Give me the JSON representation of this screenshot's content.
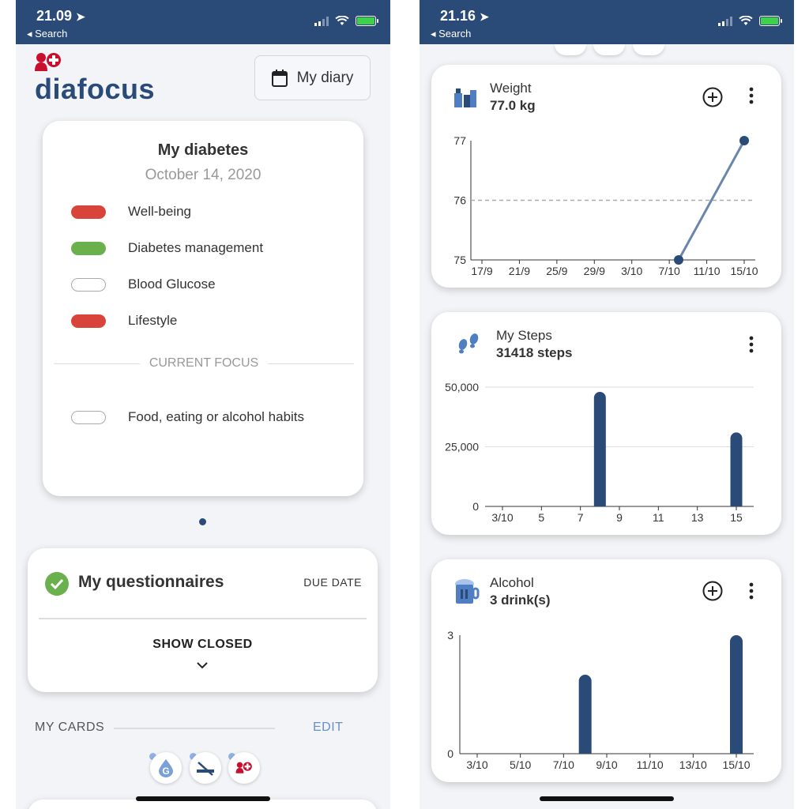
{
  "left": {
    "status": {
      "time": "21.09",
      "back": "Search"
    },
    "brand": "diafocus",
    "diary_button": "My diary",
    "diabetes_card": {
      "title": "My diabetes",
      "date": "October 14, 2020",
      "items": [
        {
          "label": "Well-being",
          "color": "red"
        },
        {
          "label": "Diabetes management",
          "color": "green"
        },
        {
          "label": "Blood Glucose",
          "color": "empty"
        },
        {
          "label": "Lifestyle",
          "color": "red"
        }
      ],
      "focus_heading": "CURRENT FOCUS",
      "focus_item": {
        "label": "Food, eating or alcohol habits",
        "color": "empty"
      }
    },
    "questionnaires": {
      "title": "My questionnaires",
      "due_label": "DUE DATE",
      "show_closed": "SHOW CLOSED"
    },
    "my_cards": {
      "label": "MY CARDS",
      "edit": "EDIT"
    },
    "mini_icons": [
      "glucose-icon",
      "no-smoking-icon",
      "diafocus-icon"
    ]
  },
  "right": {
    "status": {
      "time": "21.16",
      "back": "Search"
    },
    "weight_card": {
      "name": "Weight",
      "value": "77.0 kg"
    },
    "steps_card": {
      "name": "My Steps",
      "value": "31418 steps"
    },
    "alcohol_card": {
      "name": "Alcohol",
      "value": "3 drink(s)"
    }
  },
  "colors": {
    "brand": "#2a4a77",
    "red": "#d9443a",
    "green": "#6ab04c",
    "link": "#6a8fc7"
  },
  "chart_data": [
    {
      "type": "line",
      "title": "Weight",
      "x_ticks": [
        "17/9",
        "21/9",
        "25/9",
        "29/9",
        "3/10",
        "7/10",
        "11/10",
        "15/10"
      ],
      "y_ticks": [
        "75",
        "76",
        "77"
      ],
      "ylim": [
        75,
        77
      ],
      "reference_line": 76,
      "points": [
        {
          "x": "8/10",
          "y": 75
        },
        {
          "x": "15/10",
          "y": 77
        }
      ],
      "point_values": [
        75,
        77
      ]
    },
    {
      "type": "bar",
      "title": "My Steps",
      "x_ticks": [
        "3/10",
        "5",
        "7",
        "9",
        "11",
        "13",
        "15"
      ],
      "y_ticks": [
        "0",
        "25,000",
        "50,000"
      ],
      "ylim": [
        0,
        50000
      ],
      "bars": [
        {
          "x": "8/10",
          "y": 48000
        },
        {
          "x": "15/10",
          "y": 31000
        }
      ],
      "bar_values": [
        48000,
        31000
      ]
    },
    {
      "type": "bar",
      "title": "Alcohol",
      "x_ticks": [
        "3/10",
        "5/10",
        "7/10",
        "9/10",
        "11/10",
        "13/10",
        "15/10"
      ],
      "y_ticks": [
        "0",
        "3"
      ],
      "ylim": [
        0,
        3
      ],
      "bars": [
        {
          "x": "8/10",
          "y": 2
        },
        {
          "x": "15/10",
          "y": 3
        }
      ],
      "bar_values": [
        2,
        3
      ]
    }
  ]
}
